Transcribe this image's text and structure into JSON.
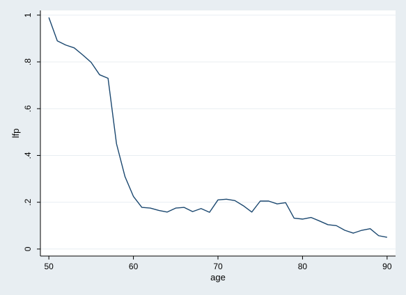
{
  "chart_data": {
    "type": "line",
    "xlabel": "age",
    "ylabel": "lfp",
    "xlim": [
      49,
      91
    ],
    "ylim": [
      -0.03,
      1.02
    ],
    "x_ticks": [
      50,
      60,
      70,
      80,
      90
    ],
    "x_tick_labels": [
      "50",
      "60",
      "70",
      "80",
      "90"
    ],
    "y_ticks": [
      0,
      0.2,
      0.4,
      0.6,
      0.8,
      1
    ],
    "y_tick_labels": [
      "0",
      ".2",
      ".4",
      ".6",
      ".8",
      "1"
    ],
    "grid": "horizontal",
    "colors": {
      "background": "#e8eef2",
      "plot_area": "#ffffff",
      "gridline": "#e8eef2",
      "line": "#1a476f"
    },
    "series": [
      {
        "x": [
          50,
          51,
          52,
          53,
          54,
          55,
          56,
          57,
          58,
          59,
          60,
          61,
          62,
          63,
          64,
          65,
          66,
          67,
          68,
          69,
          70,
          71,
          72,
          73,
          74,
          75,
          76,
          77,
          78,
          79,
          80,
          81,
          82,
          83,
          84,
          85,
          86,
          87,
          88,
          89,
          90
        ],
        "values": [
          0.99,
          0.89,
          0.872,
          0.86,
          0.83,
          0.798,
          0.745,
          0.73,
          0.45,
          0.31,
          0.225,
          0.178,
          0.175,
          0.165,
          0.158,
          0.175,
          0.178,
          0.16,
          0.173,
          0.157,
          0.21,
          0.213,
          0.207,
          0.185,
          0.158,
          0.205,
          0.205,
          0.193,
          0.198,
          0.132,
          0.128,
          0.135,
          0.12,
          0.104,
          0.1,
          0.08,
          0.068,
          0.08,
          0.087,
          0.057,
          0.05
        ]
      }
    ]
  }
}
